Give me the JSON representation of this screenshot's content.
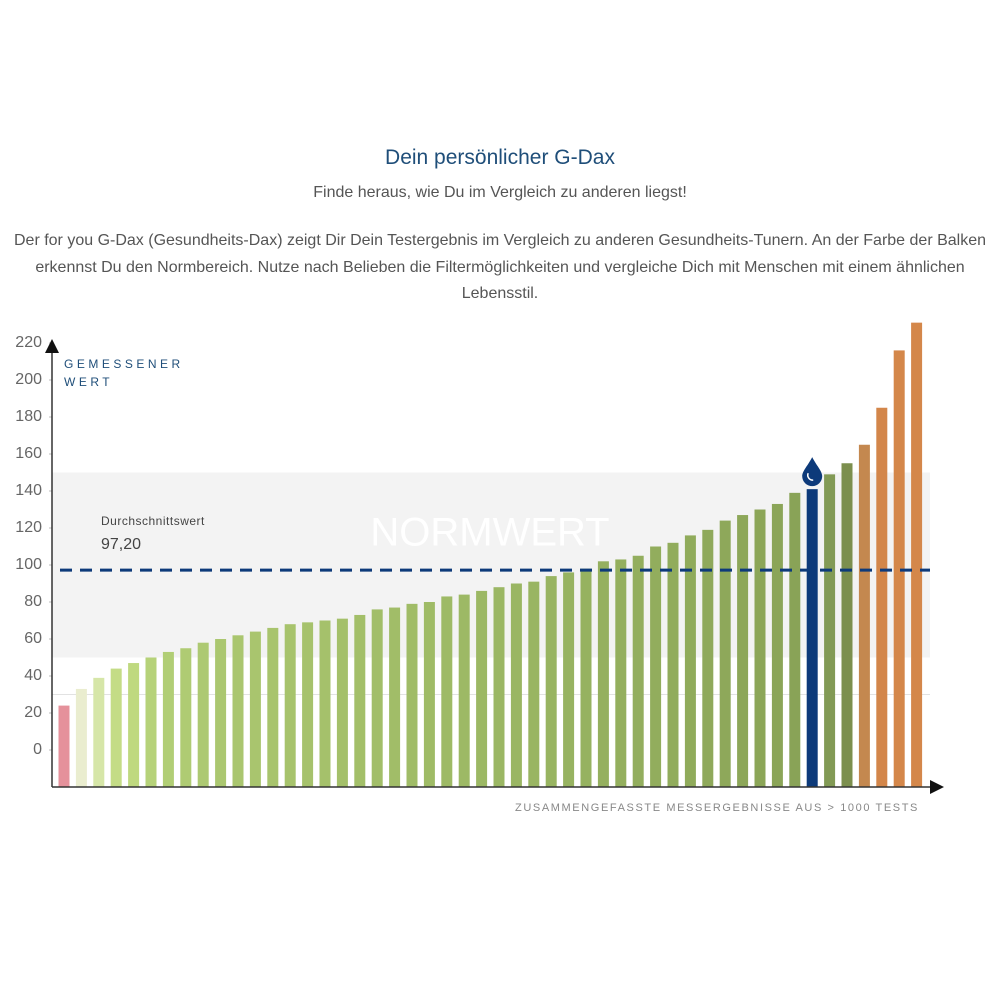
{
  "chart_data": {
    "type": "bar",
    "title": "Dein persönlicher G-Dax",
    "subtitle": "Finde heraus, wie Du im Vergleich zu anderen liegst!",
    "description": "Der for you G-Dax (Gesundheits-Dax) zeigt Dir Dein Testergebnis im Vergleich zu anderen Gesundheits-Tunern. An der Farbe der Balken erkennst Du den Normbereich. Nutze nach Belieben die Filtermöglichkeiten und vergleiche Dich mit Menschen mit einem ähnlichen Lebensstil.",
    "y_label": "GEMESSENER WERT",
    "x_label": "ZUSAMMENGEFASSTE MESSERGEBNISSE AUS > 1000 TESTS",
    "values": [
      24,
      33,
      39,
      44,
      47,
      50,
      53,
      55,
      58,
      60,
      62,
      64,
      66,
      68,
      69,
      70,
      71,
      73,
      76,
      77,
      79,
      80,
      83,
      84,
      86,
      88,
      90,
      91,
      94,
      96,
      98,
      102,
      103,
      105,
      110,
      112,
      116,
      119,
      124,
      127,
      130,
      133,
      139,
      141,
      149,
      155,
      165,
      185,
      216,
      231
    ],
    "colors": [
      "#e5919b",
      "#eaedcf",
      "#d6e6a8",
      "#c4dc86",
      "#bfd97f",
      "#b6d279",
      "#b1ce75",
      "#afcb73",
      "#adc972",
      "#abc770",
      "#aac66f",
      "#a9c56e",
      "#a8c46d",
      "#a7c36c",
      "#a6c26c",
      "#a5c16b",
      "#a4c06a",
      "#a3bf69",
      "#a2be69",
      "#a1bd68",
      "#a0bc67",
      "#9fbb66",
      "#9eba66",
      "#9db965",
      "#9cb864",
      "#9bb764",
      "#9ab663",
      "#99b562",
      "#98b461",
      "#97b361",
      "#96b260",
      "#95b05f",
      "#94af5e",
      "#93ae5e",
      "#92ad5d",
      "#91ac5c",
      "#90ab5b",
      "#8fa95b",
      "#8ea85a",
      "#8da759",
      "#8ca658",
      "#8ba558",
      "#89a357",
      "#0d3a7a",
      "#829a55",
      "#7c8f4e",
      "#c4884f",
      "#d3864a",
      "#d4874a",
      "#d4874a"
    ],
    "highlight": 43,
    "ylim": [
      -20,
      220
    ],
    "yticks": [
      0,
      20,
      40,
      60,
      80,
      100,
      120,
      140,
      160,
      180,
      200,
      220
    ],
    "normal_range": [
      50,
      150
    ],
    "normal_range_label": "NORMWERT",
    "average": {
      "label": "Durchschnittswert",
      "value": 97.2,
      "value_label": "97,20"
    }
  }
}
